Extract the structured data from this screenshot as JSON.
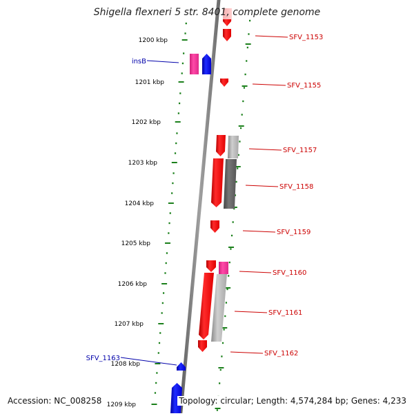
{
  "title": "Shigella flexneri 5 str. 8401, complete genome",
  "accession_text": "Accession: NC_008258",
  "summary_text": "Topology: circular; Length: 4,574,284 bp; Genes: 4,233",
  "colors": {
    "backbone": "#808080",
    "ruler_dots": "#1a7f1a",
    "forward_gene_label": "#cc0000",
    "reverse_gene_label": "#0000aa",
    "gene_red": "#ff0000",
    "gene_blue": "#0000ff",
    "gene_pink": "#ff3399",
    "gene_gray": "#a0a0a0"
  },
  "scale_labels": [
    "1200 kbp",
    "1201 kbp",
    "1202 kbp",
    "1203 kbp",
    "1204 kbp",
    "1205 kbp",
    "1206 kbp",
    "1207 kbp",
    "1208 kbp",
    "1209 kbp"
  ],
  "gene_labels": {
    "right": [
      "SFV_1153",
      "SFV_1155",
      "SFV_1157",
      "SFV_1158",
      "SFV_1159",
      "SFV_1160",
      "SFV_1161",
      "SFV_1162"
    ],
    "left": [
      "insB",
      "SFV_1163"
    ]
  }
}
